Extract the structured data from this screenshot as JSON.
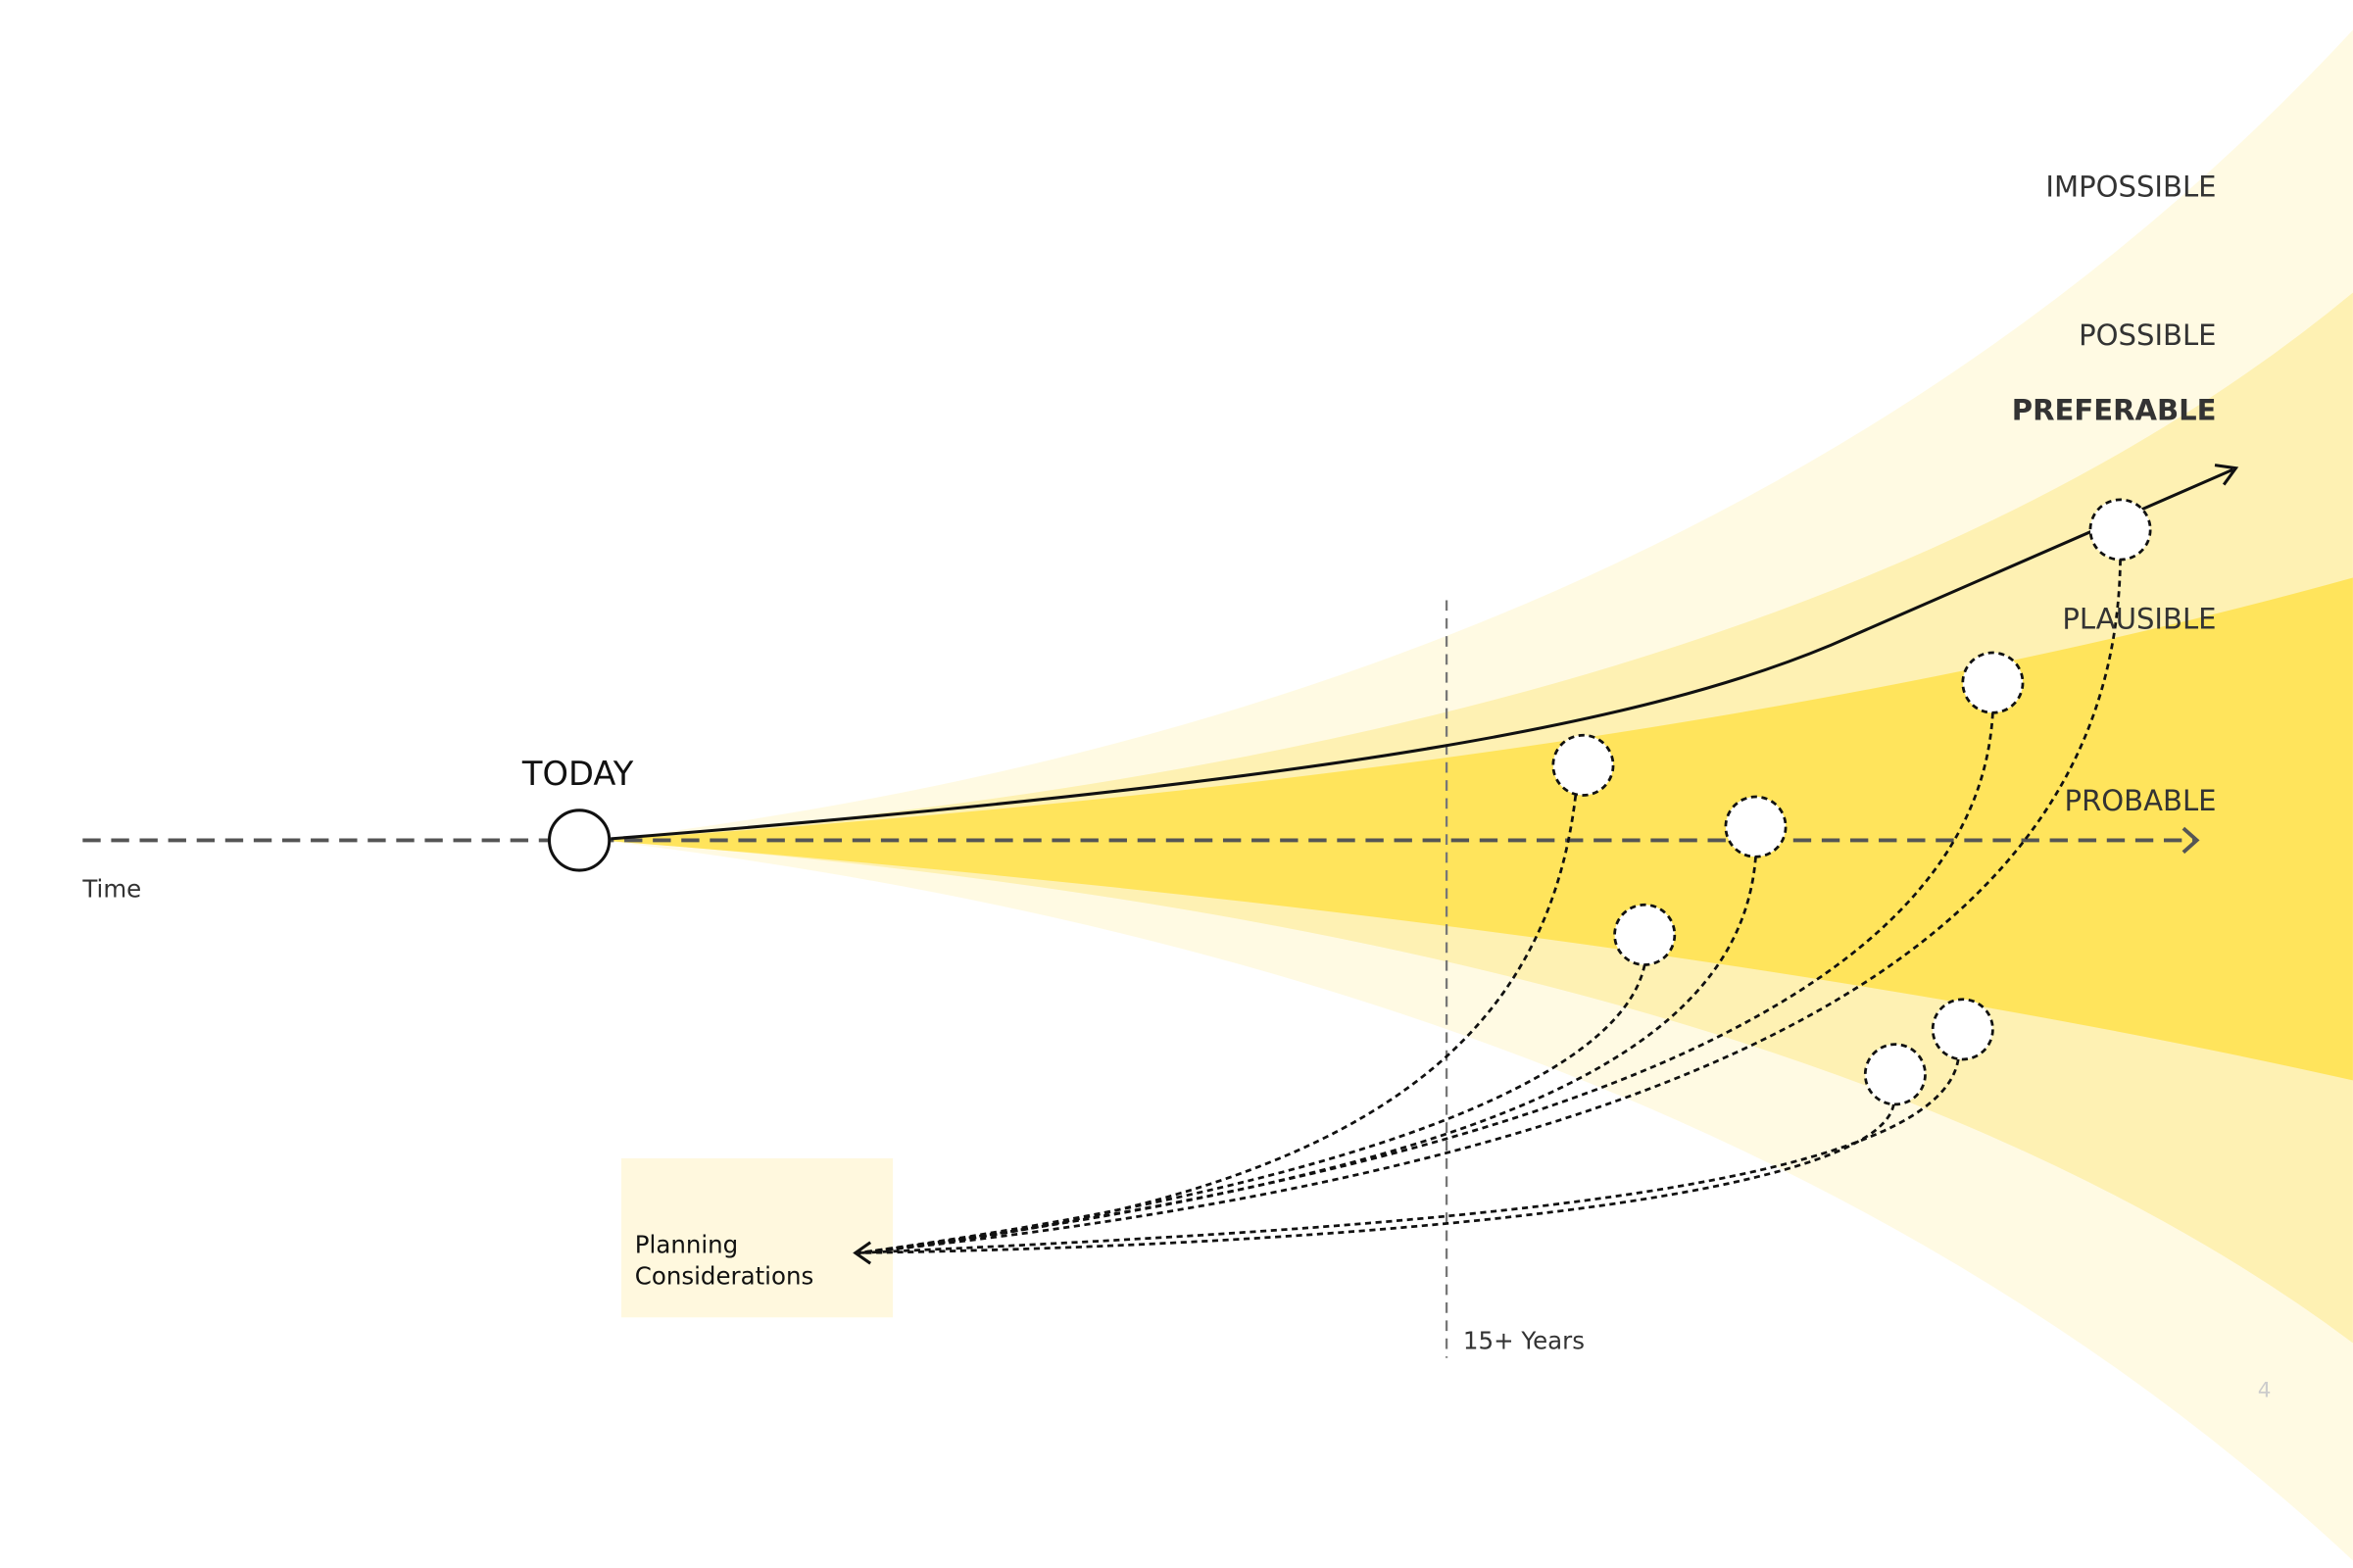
{
  "labels": {
    "impossible": "IMPOSSIBLE",
    "possible": "POSSIBLE",
    "preferable": "PREFERABLE",
    "plausible": "PLAUSIBLE",
    "probable": "PROBABLE"
  },
  "today": "TODAY",
  "time_axis": "Time",
  "horizon": "15+ Years",
  "planning": {
    "lines": [
      "Planning",
      "Considerations"
    ]
  },
  "page_number": "4"
}
